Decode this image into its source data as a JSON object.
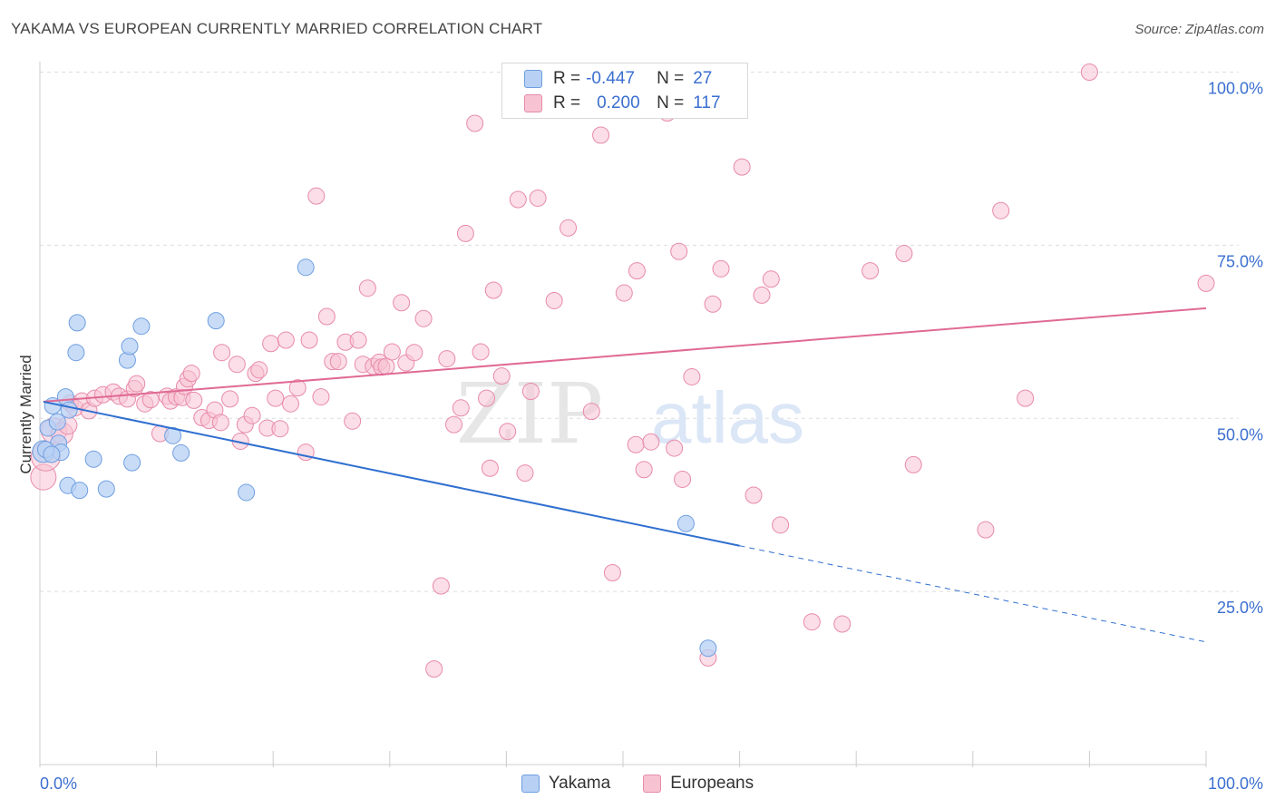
{
  "title": "YAKAMA VS EUROPEAN CURRENTLY MARRIED CORRELATION CHART",
  "source": "Source: ZipAtlas.com",
  "watermark": {
    "part1": "ZIP",
    "part2": "atlas"
  },
  "colors": {
    "yakama_fill": "#b7d0f4",
    "yakama_stroke": "#6f9fe0",
    "yakama_line": "#2f6fd0",
    "europeans_fill": "#f7c3d3",
    "europeans_stroke": "#e88aaa",
    "europeans_line": "#e06a95",
    "axis_label": "#3b6fd0",
    "grid": "#dddddd"
  },
  "legend": {
    "rows": [
      {
        "r_label": "R =",
        "r_value": "-0.447",
        "n_label": "N =",
        "n_value": "27"
      },
      {
        "r_label": "R =",
        "r_value": "0.200",
        "n_label": "N =",
        "n_value": "117"
      }
    ],
    "bottom": [
      "Yakama",
      "Europeans"
    ]
  },
  "chart_data": {
    "type": "scatter",
    "title": "YAKAMA VS EUROPEAN CURRENTLY MARRIED CORRELATION CHART",
    "xlabel": "",
    "ylabel": "Currently Married",
    "xlim": [
      0,
      100
    ],
    "ylim": [
      0,
      105
    ],
    "x_tick_labels": [
      "0.0%",
      "100.0%"
    ],
    "y_ticks": [
      25,
      50,
      75,
      100
    ],
    "y_tick_labels": [
      "25.0%",
      "50.0%",
      "75.0%",
      "100.0%"
    ],
    "x_minor_ticks": [
      0,
      10,
      20,
      30,
      40,
      50,
      60,
      70,
      80,
      90,
      100
    ],
    "series": [
      {
        "name": "Yakama",
        "R": -0.447,
        "N": 27,
        "trend": {
          "x0": 0.3,
          "y0": 52.4,
          "x1": 60,
          "y1": 31.6,
          "dash_to_x": 100,
          "dash_to_y": 17.7
        },
        "points": [
          [
            0.3,
            45.2,
            12
          ],
          [
            0.7,
            48.6,
            9
          ],
          [
            1.1,
            51.8,
            9
          ],
          [
            1.5,
            49.5,
            9
          ],
          [
            1.6,
            46.4,
            9
          ],
          [
            1.8,
            45.1,
            9
          ],
          [
            2.2,
            53.1,
            9
          ],
          [
            2.5,
            51.2,
            9
          ],
          [
            2.4,
            40.3,
            9
          ],
          [
            3.1,
            59.5,
            9
          ],
          [
            3.2,
            63.8,
            9
          ],
          [
            3.4,
            39.6,
            9
          ],
          [
            4.6,
            44.1,
            9
          ],
          [
            5.7,
            39.8,
            9
          ],
          [
            7.5,
            58.4,
            9
          ],
          [
            7.7,
            60.4,
            9
          ],
          [
            7.9,
            43.6,
            9
          ],
          [
            8.7,
            63.3,
            9
          ],
          [
            11.4,
            47.5,
            9
          ],
          [
            12.1,
            45.0,
            9
          ],
          [
            15.1,
            64.1,
            9
          ],
          [
            17.7,
            39.3,
            9
          ],
          [
            22.8,
            71.8,
            9
          ],
          [
            55.4,
            34.8,
            9
          ],
          [
            57.3,
            16.8,
            9
          ],
          [
            0.5,
            45.5,
            9
          ],
          [
            1.0,
            44.8,
            9
          ]
        ]
      },
      {
        "name": "Europeans",
        "R": 0.2,
        "N": 117,
        "trend": {
          "x0": 0.3,
          "y0": 52.4,
          "x1": 100,
          "y1": 65.9
        },
        "points": [
          [
            0.3,
            41.5,
            14
          ],
          [
            0.5,
            44.5,
            16
          ],
          [
            1.2,
            48.2,
            14
          ],
          [
            1.9,
            47.8,
            12
          ],
          [
            2.4,
            49.0,
            10
          ],
          [
            2.6,
            52.2,
            9
          ],
          [
            3.0,
            51.5,
            9
          ],
          [
            3.6,
            52.5,
            9
          ],
          [
            4.2,
            51.1,
            9
          ],
          [
            4.7,
            52.9,
            9
          ],
          [
            5.4,
            53.4,
            9
          ],
          [
            6.3,
            53.8,
            9
          ],
          [
            6.8,
            53.2,
            9
          ],
          [
            7.5,
            52.8,
            9
          ],
          [
            8.1,
            54.3,
            9
          ],
          [
            8.3,
            55.0,
            9
          ],
          [
            9.0,
            52.1,
            9
          ],
          [
            9.5,
            52.7,
            9
          ],
          [
            10.3,
            47.8,
            9
          ],
          [
            10.9,
            53.2,
            9
          ],
          [
            11.2,
            52.5,
            9
          ],
          [
            11.7,
            53.1,
            9
          ],
          [
            12.2,
            53.0,
            9
          ],
          [
            12.4,
            54.6,
            9
          ],
          [
            12.7,
            55.7,
            9
          ],
          [
            13.0,
            56.5,
            9
          ],
          [
            13.2,
            52.6,
            9
          ],
          [
            13.9,
            50.1,
            9
          ],
          [
            14.5,
            49.7,
            9
          ],
          [
            15.0,
            51.2,
            9
          ],
          [
            15.5,
            49.4,
            9
          ],
          [
            15.6,
            59.5,
            9
          ],
          [
            16.3,
            52.8,
            9
          ],
          [
            16.9,
            57.8,
            9
          ],
          [
            17.2,
            46.7,
            9
          ],
          [
            17.6,
            49.1,
            9
          ],
          [
            18.2,
            50.4,
            9
          ],
          [
            18.5,
            56.5,
            9
          ],
          [
            18.8,
            57.0,
            9
          ],
          [
            19.5,
            48.6,
            9
          ],
          [
            19.8,
            60.8,
            9
          ],
          [
            20.2,
            52.9,
            9
          ],
          [
            20.6,
            48.5,
            9
          ],
          [
            21.1,
            61.3,
            9
          ],
          [
            21.5,
            52.1,
            9
          ],
          [
            22.1,
            54.4,
            9
          ],
          [
            22.8,
            45.1,
            9
          ],
          [
            23.1,
            61.3,
            9
          ],
          [
            23.7,
            82.1,
            9
          ],
          [
            24.1,
            53.1,
            9
          ],
          [
            24.6,
            64.7,
            9
          ],
          [
            25.1,
            58.2,
            9
          ],
          [
            25.6,
            58.2,
            9
          ],
          [
            26.2,
            61.0,
            9
          ],
          [
            26.8,
            49.6,
            9
          ],
          [
            27.3,
            61.3,
            9
          ],
          [
            27.7,
            57.8,
            9
          ],
          [
            28.1,
            68.8,
            9
          ],
          [
            28.6,
            57.5,
            9
          ],
          [
            29.1,
            58.1,
            9
          ],
          [
            29.3,
            57.4,
            9
          ],
          [
            29.7,
            57.5,
            9
          ],
          [
            30.2,
            59.6,
            9
          ],
          [
            31.0,
            66.7,
            9
          ],
          [
            31.4,
            58.0,
            9
          ],
          [
            32.1,
            59.5,
            9
          ],
          [
            32.9,
            64.4,
            9
          ],
          [
            33.8,
            13.8,
            9
          ],
          [
            34.4,
            25.8,
            9
          ],
          [
            34.9,
            58.6,
            9
          ],
          [
            35.5,
            49.1,
            9
          ],
          [
            36.1,
            51.5,
            9
          ],
          [
            36.5,
            76.7,
            9
          ],
          [
            37.3,
            92.6,
            9
          ],
          [
            37.8,
            59.6,
            9
          ],
          [
            38.3,
            52.9,
            9
          ],
          [
            38.6,
            42.8,
            9
          ],
          [
            38.9,
            68.5,
            9
          ],
          [
            39.6,
            56.1,
            9
          ],
          [
            40.1,
            48.1,
            9
          ],
          [
            41.0,
            81.6,
            9
          ],
          [
            41.6,
            42.1,
            9
          ],
          [
            42.1,
            53.9,
            9
          ],
          [
            42.7,
            81.8,
            9
          ],
          [
            44.1,
            67.0,
            9
          ],
          [
            45.3,
            77.5,
            9
          ],
          [
            47.3,
            51.0,
            9
          ],
          [
            48.1,
            90.9,
            9
          ],
          [
            49.1,
            27.7,
            9
          ],
          [
            50.1,
            68.1,
            9
          ],
          [
            51.1,
            46.2,
            9
          ],
          [
            51.2,
            71.3,
            9
          ],
          [
            51.8,
            42.6,
            9
          ],
          [
            52.4,
            46.6,
            9
          ],
          [
            53.8,
            94.1,
            9
          ],
          [
            54.4,
            45.7,
            9
          ],
          [
            54.8,
            74.1,
            9
          ],
          [
            55.1,
            41.2,
            9
          ],
          [
            55.9,
            56.0,
            9
          ],
          [
            57.3,
            15.4,
            9
          ],
          [
            57.7,
            66.5,
            9
          ],
          [
            58.4,
            71.6,
            9
          ],
          [
            60.2,
            86.3,
            9
          ],
          [
            61.2,
            38.9,
            9
          ],
          [
            61.9,
            67.8,
            9
          ],
          [
            62.7,
            70.1,
            9
          ],
          [
            63.5,
            34.6,
            9
          ],
          [
            66.2,
            20.6,
            9
          ],
          [
            68.8,
            20.3,
            9
          ],
          [
            71.2,
            71.3,
            9
          ],
          [
            74.1,
            73.8,
            9
          ],
          [
            74.9,
            43.3,
            9
          ],
          [
            81.1,
            33.9,
            9
          ],
          [
            82.4,
            80.0,
            9
          ],
          [
            84.5,
            52.9,
            9
          ],
          [
            90.0,
            100.0,
            9
          ],
          [
            100.0,
            69.5,
            9
          ]
        ]
      }
    ]
  }
}
